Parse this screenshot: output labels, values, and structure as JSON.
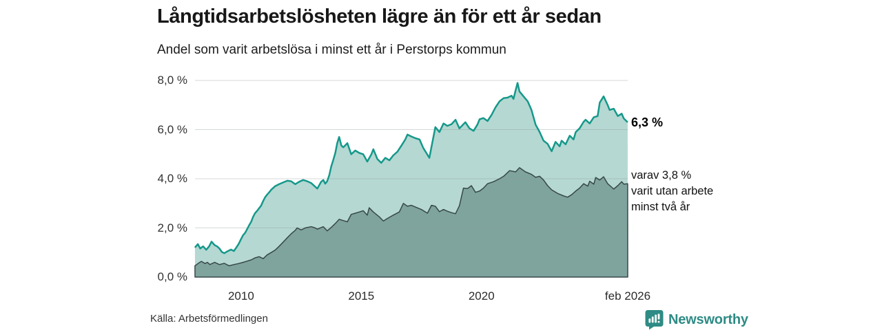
{
  "header": {
    "title": "Långtidsarbetslösheten lägre än för ett år sedan",
    "subtitle": "Andel som varit arbetslösa i minst ett år i Perstorps kommun"
  },
  "annotations": {
    "end_label_total": "6,3 %",
    "end_label_sub": [
      "varav 3,8 %",
      "varit utan arbete",
      "minst två år"
    ]
  },
  "footer": {
    "source": "Källa: Arbetsförmedlingen",
    "brand_name": "Newsworthy",
    "brand_color": "#2e8b85"
  },
  "chart_data": {
    "type": "area",
    "title": "Långtidsarbetslösheten lägre än för ett år sedan",
    "subtitle": "Andel som varit arbetslösa i minst ett år i Perstorps kommun",
    "grid": true,
    "gridline_color": "#8f9898",
    "x_axis": {
      "min": 2008.083,
      "max": 2026.083,
      "ticks": [
        {
          "label": "2010",
          "x": 2010
        },
        {
          "label": "2015",
          "x": 2015
        },
        {
          "label": "2020",
          "x": 2020
        },
        {
          "label": "feb 2026",
          "x": 2026.083
        }
      ]
    },
    "y_axis": {
      "min": 0,
      "max": 8,
      "gridlines": [
        2,
        4,
        6,
        8
      ],
      "ticks": [
        {
          "label": "0,0 %",
          "v": 0
        },
        {
          "label": "2,0 %",
          "v": 2
        },
        {
          "label": "4,0 %",
          "v": 4
        },
        {
          "label": "6,0 %",
          "v": 6
        },
        {
          "label": "8,0 %",
          "v": 8
        }
      ]
    },
    "series": [
      {
        "name": "Andel som varit arbetslösa minst ett år",
        "end_value_label": "6,3 %",
        "fill": "#b5d8d2",
        "stroke": "#15988a",
        "stroke_width": 2.5,
        "closed_stroke": false,
        "points": [
          [
            2008.08,
            1.2
          ],
          [
            2008.2,
            1.34
          ],
          [
            2008.3,
            1.16
          ],
          [
            2008.42,
            1.25
          ],
          [
            2008.55,
            1.11
          ],
          [
            2008.67,
            1.25
          ],
          [
            2008.77,
            1.44
          ],
          [
            2008.9,
            1.3
          ],
          [
            2009.0,
            1.25
          ],
          [
            2009.1,
            1.16
          ],
          [
            2009.2,
            1.02
          ],
          [
            2009.3,
            0.97
          ],
          [
            2009.4,
            1.03
          ],
          [
            2009.5,
            1.08
          ],
          [
            2009.58,
            1.12
          ],
          [
            2009.7,
            1.06
          ],
          [
            2009.8,
            1.2
          ],
          [
            2009.9,
            1.35
          ],
          [
            2010.0,
            1.55
          ],
          [
            2010.08,
            1.7
          ],
          [
            2010.17,
            1.8
          ],
          [
            2010.25,
            1.95
          ],
          [
            2010.33,
            2.1
          ],
          [
            2010.42,
            2.25
          ],
          [
            2010.5,
            2.45
          ],
          [
            2010.58,
            2.6
          ],
          [
            2010.67,
            2.7
          ],
          [
            2010.75,
            2.8
          ],
          [
            2010.83,
            2.9
          ],
          [
            2010.92,
            3.1
          ],
          [
            2011.0,
            3.25
          ],
          [
            2011.08,
            3.35
          ],
          [
            2011.17,
            3.45
          ],
          [
            2011.25,
            3.55
          ],
          [
            2011.42,
            3.7
          ],
          [
            2011.58,
            3.78
          ],
          [
            2011.75,
            3.85
          ],
          [
            2011.92,
            3.92
          ],
          [
            2012.08,
            3.9
          ],
          [
            2012.25,
            3.78
          ],
          [
            2012.42,
            3.88
          ],
          [
            2012.58,
            3.95
          ],
          [
            2012.75,
            3.9
          ],
          [
            2012.92,
            3.82
          ],
          [
            2013.08,
            3.68
          ],
          [
            2013.17,
            3.6
          ],
          [
            2013.33,
            3.88
          ],
          [
            2013.42,
            3.95
          ],
          [
            2013.5,
            3.8
          ],
          [
            2013.58,
            3.9
          ],
          [
            2013.67,
            4.15
          ],
          [
            2013.75,
            4.5
          ],
          [
            2013.83,
            4.75
          ],
          [
            2013.92,
            5.05
          ],
          [
            2014.0,
            5.45
          ],
          [
            2014.08,
            5.7
          ],
          [
            2014.17,
            5.35
          ],
          [
            2014.25,
            5.28
          ],
          [
            2014.42,
            5.45
          ],
          [
            2014.58,
            5.0
          ],
          [
            2014.75,
            5.15
          ],
          [
            2014.92,
            5.05
          ],
          [
            2015.08,
            5.0
          ],
          [
            2015.25,
            4.7
          ],
          [
            2015.42,
            5.0
          ],
          [
            2015.5,
            5.2
          ],
          [
            2015.67,
            4.8
          ],
          [
            2015.83,
            4.65
          ],
          [
            2016.0,
            4.85
          ],
          [
            2016.17,
            4.75
          ],
          [
            2016.33,
            4.95
          ],
          [
            2016.5,
            5.1
          ],
          [
            2016.67,
            5.35
          ],
          [
            2016.83,
            5.6
          ],
          [
            2016.92,
            5.8
          ],
          [
            2017.08,
            5.72
          ],
          [
            2017.25,
            5.65
          ],
          [
            2017.42,
            5.6
          ],
          [
            2017.58,
            5.25
          ],
          [
            2017.75,
            4.98
          ],
          [
            2017.83,
            4.85
          ],
          [
            2017.92,
            5.3
          ],
          [
            2018.08,
            6.1
          ],
          [
            2018.25,
            5.9
          ],
          [
            2018.42,
            6.25
          ],
          [
            2018.58,
            6.15
          ],
          [
            2018.75,
            6.22
          ],
          [
            2018.92,
            6.4
          ],
          [
            2019.08,
            6.05
          ],
          [
            2019.25,
            6.22
          ],
          [
            2019.33,
            6.3
          ],
          [
            2019.5,
            6.05
          ],
          [
            2019.67,
            5.95
          ],
          [
            2019.83,
            6.2
          ],
          [
            2019.92,
            6.42
          ],
          [
            2020.08,
            6.47
          ],
          [
            2020.25,
            6.35
          ],
          [
            2020.42,
            6.6
          ],
          [
            2020.58,
            6.9
          ],
          [
            2020.75,
            7.15
          ],
          [
            2020.92,
            7.28
          ],
          [
            2021.08,
            7.3
          ],
          [
            2021.25,
            7.38
          ],
          [
            2021.33,
            7.25
          ],
          [
            2021.42,
            7.6
          ],
          [
            2021.5,
            7.9
          ],
          [
            2021.58,
            7.55
          ],
          [
            2021.75,
            7.35
          ],
          [
            2021.92,
            7.15
          ],
          [
            2022.08,
            6.8
          ],
          [
            2022.25,
            6.2
          ],
          [
            2022.42,
            5.9
          ],
          [
            2022.58,
            5.55
          ],
          [
            2022.75,
            5.42
          ],
          [
            2022.92,
            5.12
          ],
          [
            2023.08,
            5.5
          ],
          [
            2023.25,
            5.32
          ],
          [
            2023.33,
            5.55
          ],
          [
            2023.5,
            5.4
          ],
          [
            2023.67,
            5.75
          ],
          [
            2023.83,
            5.6
          ],
          [
            2023.92,
            5.9
          ],
          [
            2024.08,
            6.05
          ],
          [
            2024.25,
            6.32
          ],
          [
            2024.33,
            6.4
          ],
          [
            2024.5,
            6.25
          ],
          [
            2024.67,
            6.5
          ],
          [
            2024.83,
            6.55
          ],
          [
            2024.92,
            7.1
          ],
          [
            2025.08,
            7.35
          ],
          [
            2025.25,
            7.0
          ],
          [
            2025.33,
            6.8
          ],
          [
            2025.5,
            6.85
          ],
          [
            2025.67,
            6.55
          ],
          [
            2025.83,
            6.65
          ],
          [
            2025.92,
            6.45
          ],
          [
            2026.08,
            6.3
          ]
        ]
      },
      {
        "name": "varav utan arbete minst två år",
        "end_value_label": "3,8 %",
        "fill": "#7fa49d",
        "stroke": "#37474a",
        "stroke_width": 1.5,
        "closed_stroke": true,
        "points": [
          [
            2008.08,
            0.46
          ],
          [
            2008.25,
            0.58
          ],
          [
            2008.35,
            0.64
          ],
          [
            2008.5,
            0.55
          ],
          [
            2008.6,
            0.6
          ],
          [
            2008.7,
            0.51
          ],
          [
            2008.9,
            0.6
          ],
          [
            2009.1,
            0.51
          ],
          [
            2009.3,
            0.56
          ],
          [
            2009.5,
            0.46
          ],
          [
            2009.7,
            0.51
          ],
          [
            2009.9,
            0.55
          ],
          [
            2010.08,
            0.6
          ],
          [
            2010.25,
            0.65
          ],
          [
            2010.42,
            0.7
          ],
          [
            2010.58,
            0.78
          ],
          [
            2010.75,
            0.83
          ],
          [
            2010.92,
            0.75
          ],
          [
            2011.08,
            0.9
          ],
          [
            2011.25,
            1.0
          ],
          [
            2011.42,
            1.1
          ],
          [
            2011.58,
            1.25
          ],
          [
            2011.75,
            1.42
          ],
          [
            2011.92,
            1.6
          ],
          [
            2012.08,
            1.76
          ],
          [
            2012.25,
            1.9
          ],
          [
            2012.33,
            2.0
          ],
          [
            2012.5,
            1.92
          ],
          [
            2012.67,
            2.0
          ],
          [
            2012.92,
            2.05
          ],
          [
            2013.08,
            2.0
          ],
          [
            2013.17,
            1.95
          ],
          [
            2013.42,
            2.05
          ],
          [
            2013.58,
            1.88
          ],
          [
            2013.75,
            2.02
          ],
          [
            2013.92,
            2.18
          ],
          [
            2014.08,
            2.35
          ],
          [
            2014.25,
            2.3
          ],
          [
            2014.42,
            2.25
          ],
          [
            2014.58,
            2.55
          ],
          [
            2014.75,
            2.6
          ],
          [
            2014.92,
            2.65
          ],
          [
            2015.08,
            2.7
          ],
          [
            2015.25,
            2.52
          ],
          [
            2015.33,
            2.82
          ],
          [
            2015.5,
            2.65
          ],
          [
            2015.75,
            2.45
          ],
          [
            2015.92,
            2.28
          ],
          [
            2016.08,
            2.38
          ],
          [
            2016.33,
            2.52
          ],
          [
            2016.58,
            2.65
          ],
          [
            2016.75,
            3.0
          ],
          [
            2016.92,
            2.88
          ],
          [
            2017.08,
            2.92
          ],
          [
            2017.25,
            2.85
          ],
          [
            2017.5,
            2.75
          ],
          [
            2017.75,
            2.6
          ],
          [
            2017.92,
            2.92
          ],
          [
            2018.08,
            2.88
          ],
          [
            2018.25,
            2.66
          ],
          [
            2018.42,
            2.75
          ],
          [
            2018.58,
            2.68
          ],
          [
            2018.75,
            2.62
          ],
          [
            2018.92,
            2.58
          ],
          [
            2019.08,
            2.9
          ],
          [
            2019.25,
            3.62
          ],
          [
            2019.42,
            3.6
          ],
          [
            2019.58,
            3.72
          ],
          [
            2019.75,
            3.45
          ],
          [
            2019.92,
            3.5
          ],
          [
            2020.08,
            3.62
          ],
          [
            2020.25,
            3.8
          ],
          [
            2020.5,
            3.88
          ],
          [
            2020.75,
            4.0
          ],
          [
            2020.92,
            4.1
          ],
          [
            2021.17,
            4.33
          ],
          [
            2021.42,
            4.28
          ],
          [
            2021.58,
            4.45
          ],
          [
            2021.83,
            4.28
          ],
          [
            2022.08,
            4.18
          ],
          [
            2022.25,
            4.06
          ],
          [
            2022.42,
            4.1
          ],
          [
            2022.58,
            3.95
          ],
          [
            2022.75,
            3.72
          ],
          [
            2022.92,
            3.55
          ],
          [
            2023.17,
            3.4
          ],
          [
            2023.42,
            3.3
          ],
          [
            2023.58,
            3.25
          ],
          [
            2023.75,
            3.35
          ],
          [
            2023.92,
            3.5
          ],
          [
            2024.08,
            3.62
          ],
          [
            2024.25,
            3.8
          ],
          [
            2024.42,
            3.7
          ],
          [
            2024.5,
            3.9
          ],
          [
            2024.67,
            3.78
          ],
          [
            2024.75,
            4.05
          ],
          [
            2024.92,
            3.95
          ],
          [
            2025.08,
            4.08
          ],
          [
            2025.25,
            3.8
          ],
          [
            2025.42,
            3.65
          ],
          [
            2025.5,
            3.58
          ],
          [
            2025.67,
            3.72
          ],
          [
            2025.83,
            3.88
          ],
          [
            2025.92,
            3.78
          ],
          [
            2026.08,
            3.8
          ]
        ]
      }
    ]
  }
}
